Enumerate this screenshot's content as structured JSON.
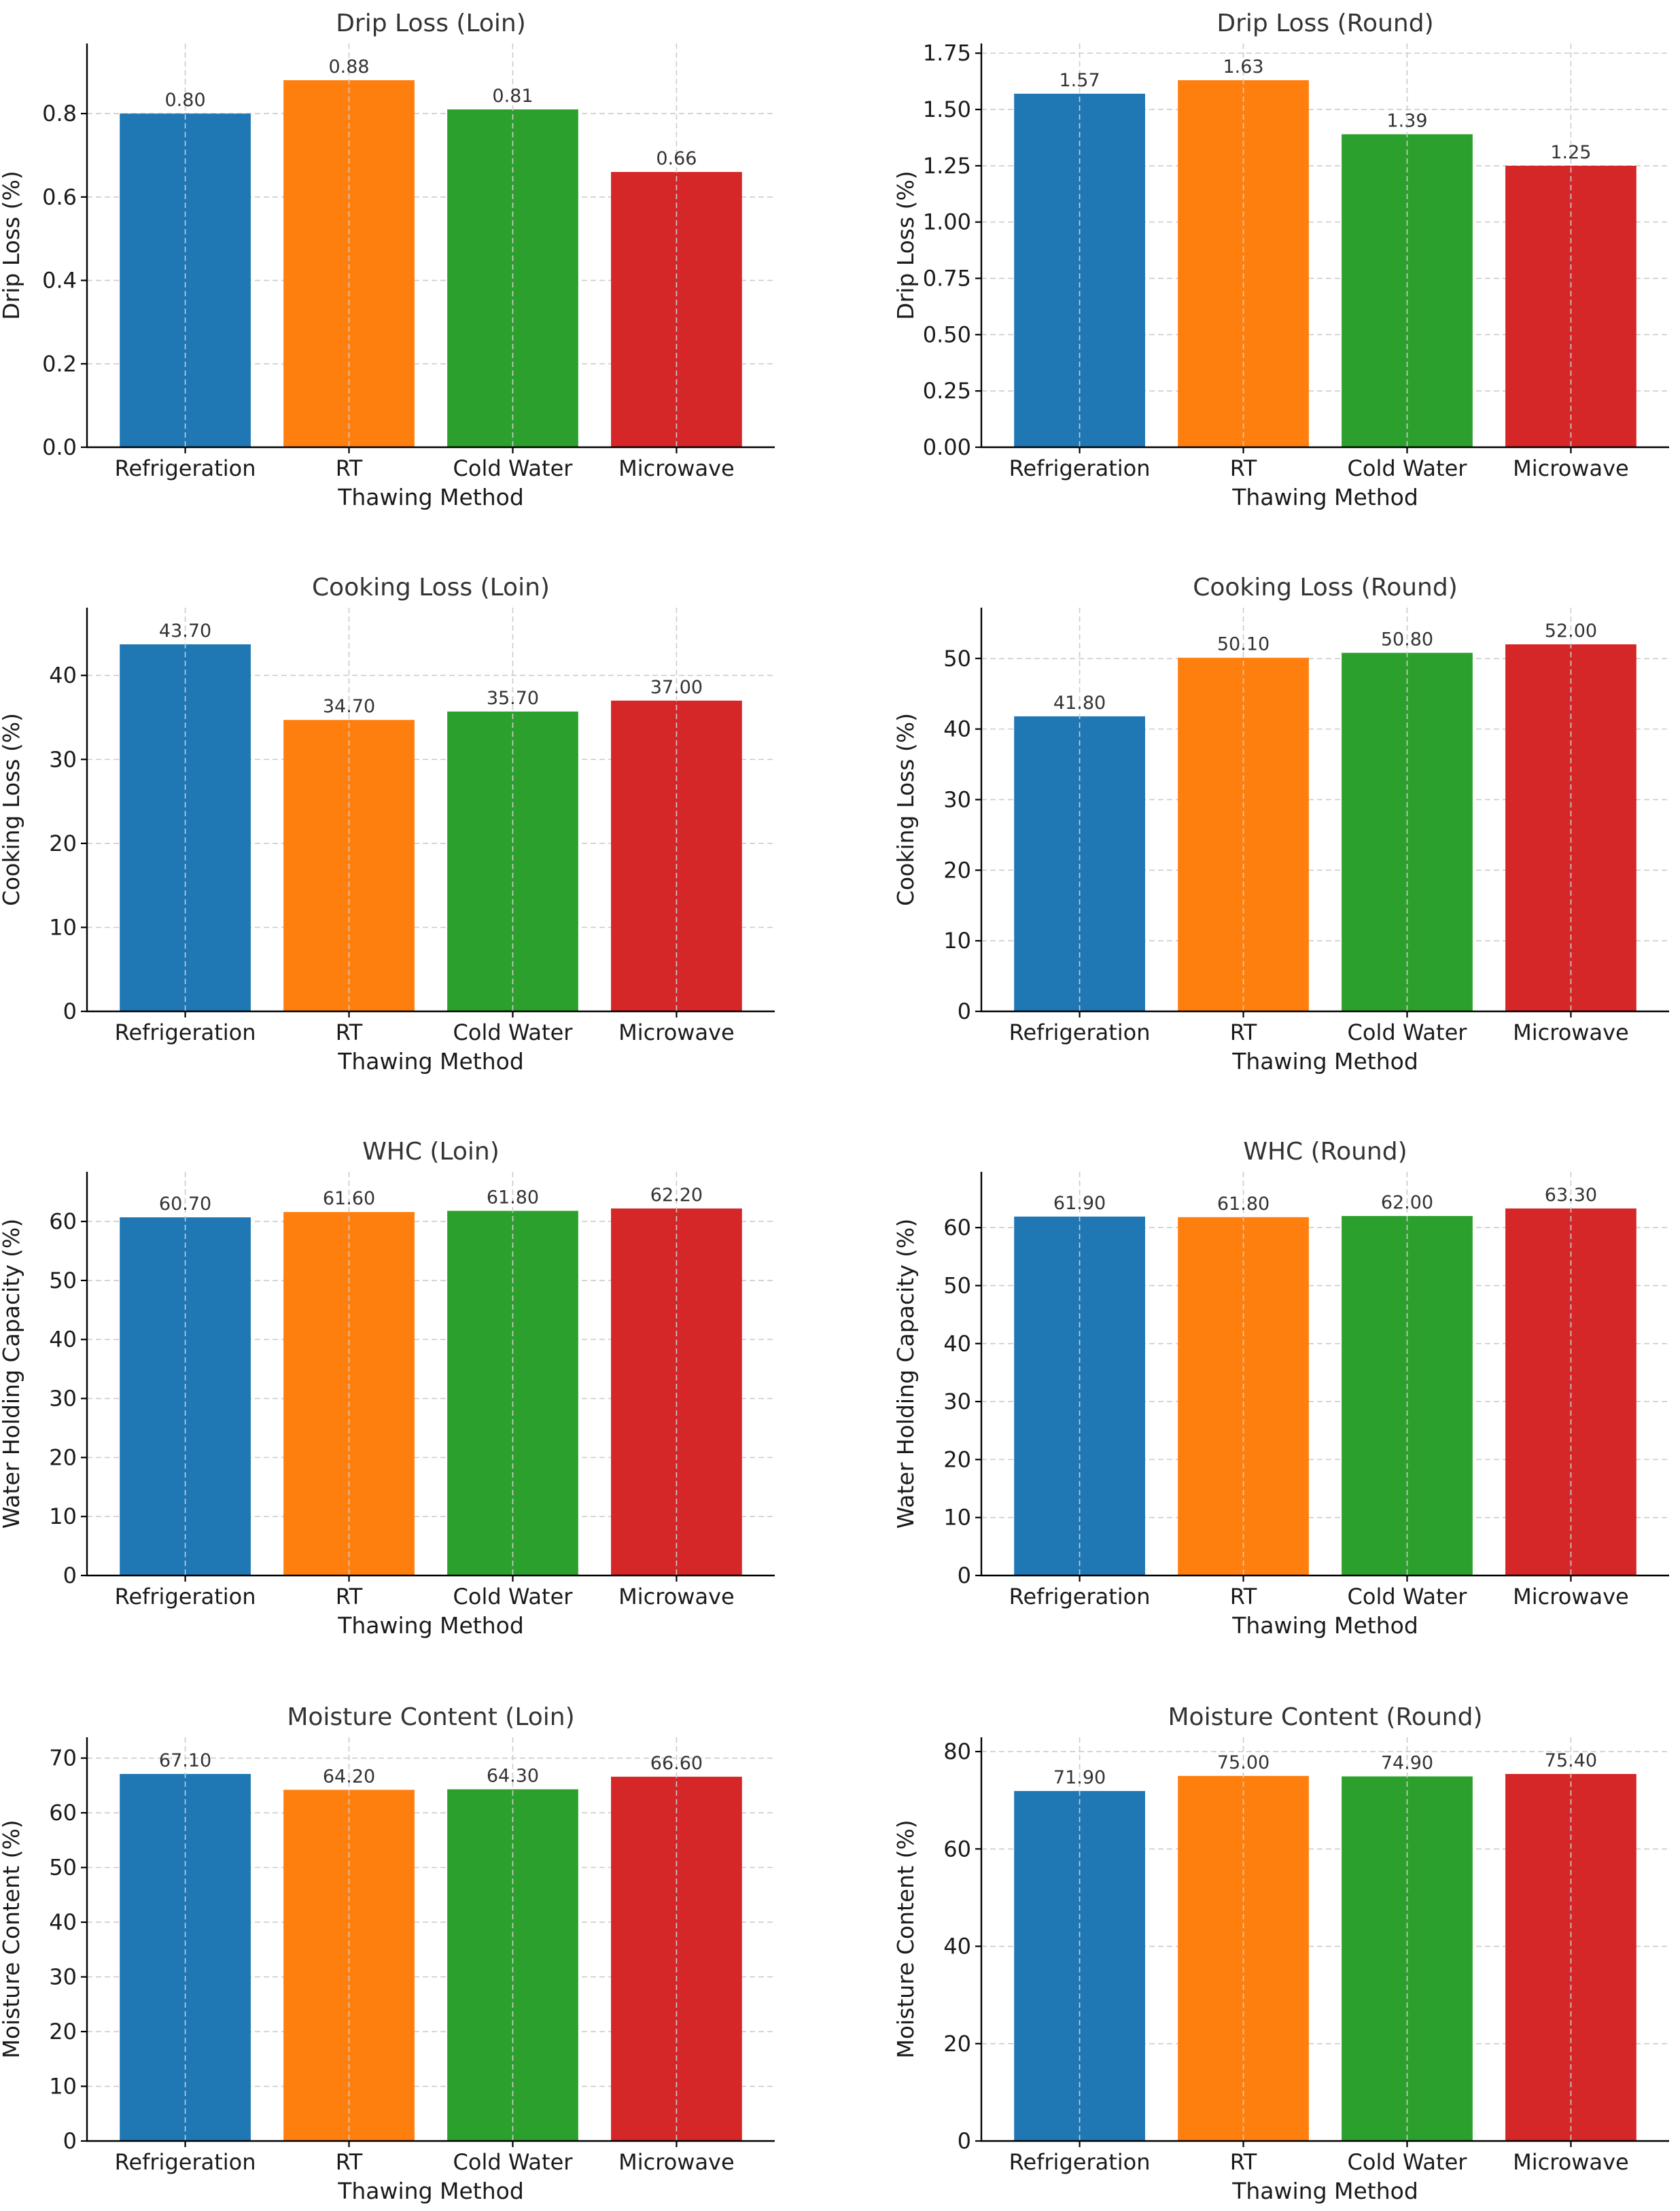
{
  "chart_data": [
    {
      "type": "bar",
      "title": "Drip Loss (Loin)",
      "xlabel": "Thawing Method",
      "ylabel": "Drip Loss (%)",
      "categories": [
        "Refrigeration",
        "RT",
        "Cold Water",
        "Microwave"
      ],
      "values": [
        0.8,
        0.88,
        0.81,
        0.66
      ],
      "value_labels": [
        "0.80",
        "0.88",
        "0.81",
        "0.66"
      ],
      "ylim": [
        0,
        0.968
      ],
      "yticks": [
        0.0,
        0.2,
        0.4,
        0.6,
        0.8
      ],
      "ytick_labels": [
        "0.0",
        "0.2",
        "0.4",
        "0.6",
        "0.8"
      ],
      "grid": true
    },
    {
      "type": "bar",
      "title": "Drip Loss (Round)",
      "xlabel": "Thawing Method",
      "ylabel": "Drip Loss (%)",
      "categories": [
        "Refrigeration",
        "RT",
        "Cold Water",
        "Microwave"
      ],
      "values": [
        1.57,
        1.63,
        1.39,
        1.25
      ],
      "value_labels": [
        "1.57",
        "1.63",
        "1.39",
        "1.25"
      ],
      "ylim": [
        0,
        1.793
      ],
      "yticks": [
        0.0,
        0.25,
        0.5,
        0.75,
        1.0,
        1.25,
        1.5,
        1.75
      ],
      "ytick_labels": [
        "0.00",
        "0.25",
        "0.50",
        "0.75",
        "1.00",
        "1.25",
        "1.50",
        "1.75"
      ],
      "grid": true
    },
    {
      "type": "bar",
      "title": "Cooking Loss (Loin)",
      "xlabel": "Thawing Method",
      "ylabel": "Cooking Loss (%)",
      "categories": [
        "Refrigeration",
        "RT",
        "Cold Water",
        "Microwave"
      ],
      "values": [
        43.7,
        34.7,
        35.7,
        37.0
      ],
      "value_labels": [
        "43.70",
        "34.70",
        "35.70",
        "37.00"
      ],
      "ylim": [
        0,
        48.07
      ],
      "yticks": [
        0,
        10,
        20,
        30,
        40
      ],
      "ytick_labels": [
        "0",
        "10",
        "20",
        "30",
        "40"
      ],
      "grid": true
    },
    {
      "type": "bar",
      "title": "Cooking Loss (Round)",
      "xlabel": "Thawing Method",
      "ylabel": "Cooking Loss (%)",
      "categories": [
        "Refrigeration",
        "RT",
        "Cold Water",
        "Microwave"
      ],
      "values": [
        41.8,
        50.1,
        50.8,
        52.0
      ],
      "value_labels": [
        "41.80",
        "50.10",
        "50.80",
        "52.00"
      ],
      "ylim": [
        0,
        57.2
      ],
      "yticks": [
        0,
        10,
        20,
        30,
        40,
        50
      ],
      "ytick_labels": [
        "0",
        "10",
        "20",
        "30",
        "40",
        "50"
      ],
      "grid": true
    },
    {
      "type": "bar",
      "title": "WHC (Loin)",
      "xlabel": "Thawing Method",
      "ylabel": "Water Holding Capacity (%)",
      "categories": [
        "Refrigeration",
        "RT",
        "Cold Water",
        "Microwave"
      ],
      "values": [
        60.7,
        61.6,
        61.8,
        62.2
      ],
      "value_labels": [
        "60.70",
        "61.60",
        "61.80",
        "62.20"
      ],
      "ylim": [
        0,
        68.42
      ],
      "yticks": [
        0,
        10,
        20,
        30,
        40,
        50,
        60
      ],
      "ytick_labels": [
        "0",
        "10",
        "20",
        "30",
        "40",
        "50",
        "60"
      ],
      "grid": true
    },
    {
      "type": "bar",
      "title": "WHC (Round)",
      "xlabel": "Thawing Method",
      "ylabel": "Water Holding Capacity (%)",
      "categories": [
        "Refrigeration",
        "RT",
        "Cold Water",
        "Microwave"
      ],
      "values": [
        61.9,
        61.8,
        62.0,
        63.3
      ],
      "value_labels": [
        "61.90",
        "61.80",
        "62.00",
        "63.30"
      ],
      "ylim": [
        0,
        69.63
      ],
      "yticks": [
        0,
        10,
        20,
        30,
        40,
        50,
        60
      ],
      "ytick_labels": [
        "0",
        "10",
        "20",
        "30",
        "40",
        "50",
        "60"
      ],
      "grid": true
    },
    {
      "type": "bar",
      "title": "Moisture Content (Loin)",
      "xlabel": "Thawing Method",
      "ylabel": "Moisture Content (%)",
      "categories": [
        "Refrigeration",
        "RT",
        "Cold Water",
        "Microwave"
      ],
      "values": [
        67.1,
        64.2,
        64.3,
        66.6
      ],
      "value_labels": [
        "67.10",
        "64.20",
        "64.30",
        "66.60"
      ],
      "ylim": [
        0,
        73.81
      ],
      "yticks": [
        0,
        10,
        20,
        30,
        40,
        50,
        60,
        70
      ],
      "ytick_labels": [
        "0",
        "10",
        "20",
        "30",
        "40",
        "50",
        "60",
        "70"
      ],
      "grid": true
    },
    {
      "type": "bar",
      "title": "Moisture Content (Round)",
      "xlabel": "Thawing Method",
      "ylabel": "Moisture Content (%)",
      "categories": [
        "Refrigeration",
        "RT",
        "Cold Water",
        "Microwave"
      ],
      "values": [
        71.9,
        75.0,
        74.9,
        75.4
      ],
      "value_labels": [
        "71.90",
        "75.00",
        "74.90",
        "75.40"
      ],
      "ylim": [
        0,
        82.94
      ],
      "yticks": [
        0,
        20,
        40,
        60,
        80
      ],
      "ytick_labels": [
        "0",
        "20",
        "40",
        "60",
        "80"
      ],
      "grid": true
    }
  ],
  "colors": {
    "Refrigeration": "#1f77b4",
    "RT": "#ff7f0e",
    "Cold Water": "#2ca02c",
    "Microwave": "#d62728"
  }
}
